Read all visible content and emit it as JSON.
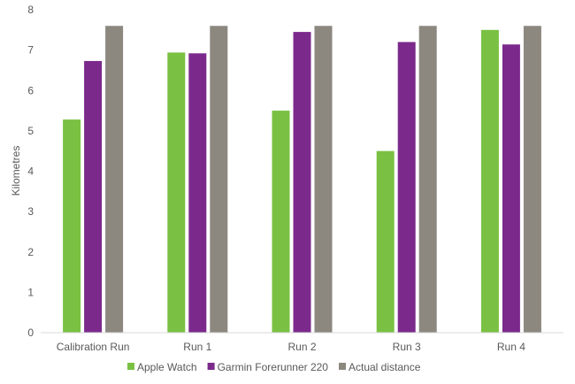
{
  "chart_data": {
    "type": "bar",
    "title": "",
    "xlabel": "",
    "ylabel": "Kilometres",
    "ylim": [
      0,
      8
    ],
    "yticks": [
      0,
      1,
      2,
      3,
      4,
      5,
      6,
      7,
      8
    ],
    "grid": false,
    "legend_position": "bottom",
    "categories": [
      "Calibration Run",
      "Run 1",
      "Run 2",
      "Run 3",
      "Run 4"
    ],
    "series": [
      {
        "name": "Apple Watch",
        "color": "#7ac143",
        "values": [
          5.28,
          6.94,
          5.5,
          4.5,
          7.5
        ]
      },
      {
        "name": "Garmin Forerunner 220",
        "color": "#7b2a8c",
        "values": [
          6.73,
          6.92,
          7.45,
          7.2,
          7.14
        ]
      },
      {
        "name": "Actual distance",
        "color": "#8c8880",
        "values": [
          7.6,
          7.6,
          7.6,
          7.6,
          7.6
        ]
      }
    ]
  }
}
